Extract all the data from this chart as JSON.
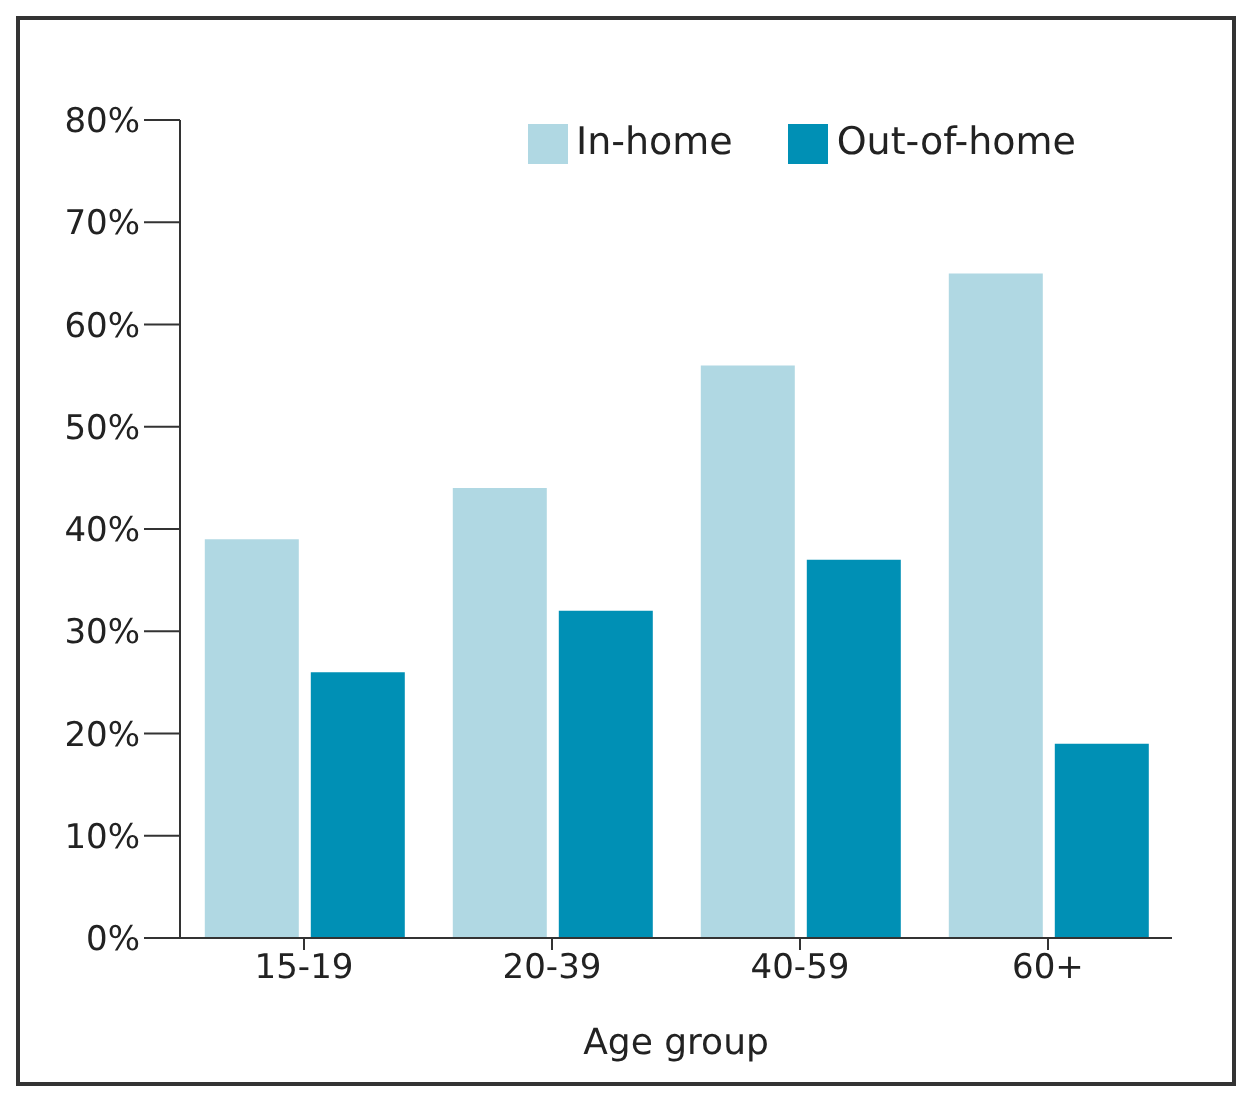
{
  "chart_data": {
    "type": "bar",
    "xlabel": "Age group",
    "categories": [
      "15-19",
      "20-39",
      "40-59",
      "60+"
    ],
    "series": [
      {
        "name": "In-home",
        "color": "#b0d8e3",
        "values": [
          39,
          44,
          56,
          65
        ]
      },
      {
        "name": "Out-of-home",
        "color": "#0090b5",
        "values": [
          26,
          32,
          37,
          19
        ]
      }
    ],
    "ylim": [
      0,
      80
    ],
    "yticks": [
      {
        "value": 0,
        "label": "0%"
      },
      {
        "value": 10,
        "label": "10%"
      },
      {
        "value": 20,
        "label": "20%"
      },
      {
        "value": 30,
        "label": "30%"
      },
      {
        "value": 40,
        "label": "40%"
      },
      {
        "value": 50,
        "label": "50%"
      },
      {
        "value": 60,
        "label": "60%"
      },
      {
        "value": 70,
        "label": "70%"
      },
      {
        "value": 80,
        "label": "80%"
      }
    ],
    "legend": "top right",
    "grid": false
  }
}
